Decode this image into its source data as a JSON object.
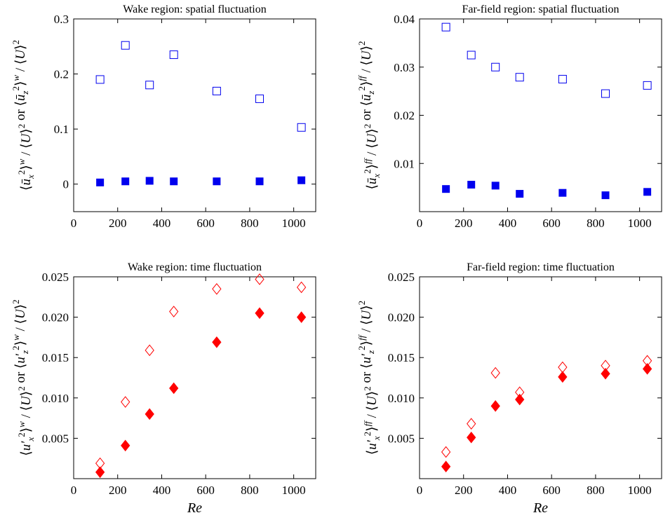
{
  "chart_data": [
    {
      "type": "scatter",
      "title": "Wake region: spatial fluctuation",
      "xlabel": "",
      "ylabel": "⟨ū_x²⟩^w / ⟨U⟩²  or  ⟨ū_z²⟩^w / ⟨U⟩²",
      "xlim": [
        0,
        1100
      ],
      "ylim": [
        -0.05,
        0.3
      ],
      "xticks": [
        "0",
        "200",
        "400",
        "600",
        "800",
        "1000"
      ],
      "yticks": [
        "0",
        "0.1",
        "0.2",
        "0.3"
      ],
      "grid": false,
      "series": [
        {
          "marker": "square-open",
          "color": "#0000ee",
          "x": [
            120,
            235,
            345,
            455,
            650,
            845,
            1035
          ],
          "y": [
            0.19,
            0.252,
            0.18,
            0.235,
            0.169,
            0.155,
            0.103
          ]
        },
        {
          "marker": "square-filled",
          "color": "#0000ee",
          "x": [
            120,
            235,
            345,
            455,
            650,
            845,
            1035
          ],
          "y": [
            0.003,
            0.005,
            0.006,
            0.005,
            0.005,
            0.005,
            0.007
          ]
        }
      ]
    },
    {
      "type": "scatter",
      "title": "Far-field region: spatial fluctuation",
      "xlabel": "",
      "ylabel": "⟨ū_x²⟩^ff / ⟨U⟩²  or  ⟨ū_z²⟩^ff / ⟨U⟩²",
      "xlim": [
        0,
        1100
      ],
      "ylim": [
        0,
        0.04
      ],
      "xticks": [
        "0",
        "200",
        "400",
        "600",
        "800",
        "1000"
      ],
      "yticks": [
        "0.01",
        "0.02",
        "0.03",
        "0.04"
      ],
      "grid": false,
      "series": [
        {
          "marker": "square-open",
          "color": "#0000ee",
          "x": [
            120,
            235,
            345,
            455,
            650,
            845,
            1035
          ],
          "y": [
            0.0383,
            0.0325,
            0.03,
            0.0279,
            0.0275,
            0.0245,
            0.0262
          ]
        },
        {
          "marker": "square-filled",
          "color": "#0000ee",
          "x": [
            120,
            235,
            345,
            455,
            650,
            845,
            1035
          ],
          "y": [
            0.0047,
            0.0056,
            0.0054,
            0.0037,
            0.0039,
            0.0034,
            0.0041
          ]
        }
      ]
    },
    {
      "type": "scatter",
      "title": "Wake region: time fluctuation",
      "xlabel": "Re",
      "ylabel": "⟨u′_x²⟩^w / ⟨U⟩²  or  ⟨u′_z²⟩^w / ⟨U⟩²",
      "xlim": [
        0,
        1100
      ],
      "ylim": [
        0,
        0.025
      ],
      "xticks": [
        "0",
        "200",
        "400",
        "600",
        "800",
        "1000"
      ],
      "yticks": [
        "0.005",
        "0.010",
        "0.015",
        "0.020",
        "0.025"
      ],
      "grid": false,
      "series": [
        {
          "marker": "diamond-open",
          "color": "#ff0000",
          "x": [
            120,
            235,
            345,
            455,
            650,
            845,
            1035
          ],
          "y": [
            0.0019,
            0.0095,
            0.0159,
            0.0207,
            0.0235,
            0.0247,
            0.0237
          ]
        },
        {
          "marker": "diamond-filled",
          "color": "#ff0000",
          "x": [
            120,
            235,
            345,
            455,
            650,
            845,
            1035
          ],
          "y": [
            0.0008,
            0.0041,
            0.008,
            0.0112,
            0.0169,
            0.0205,
            0.02
          ]
        }
      ]
    },
    {
      "type": "scatter",
      "title": "Far-field region: time fluctuation",
      "xlabel": "Re",
      "ylabel": "⟨u′_x²⟩^ff / ⟨U⟩²  or  ⟨u′_z²⟩^ff / ⟨U⟩²",
      "xlim": [
        0,
        1100
      ],
      "ylim": [
        0,
        0.025
      ],
      "xticks": [
        "0",
        "200",
        "400",
        "600",
        "800",
        "1000"
      ],
      "yticks": [
        "0.005",
        "0.010",
        "0.015",
        "0.020",
        "0.025"
      ],
      "grid": false,
      "series": [
        {
          "marker": "diamond-open",
          "color": "#ff0000",
          "x": [
            120,
            235,
            345,
            455,
            650,
            845,
            1035
          ],
          "y": [
            0.0033,
            0.0068,
            0.0131,
            0.0107,
            0.0138,
            0.014,
            0.0146
          ]
        },
        {
          "marker": "diamond-filled",
          "color": "#ff0000",
          "x": [
            120,
            235,
            345,
            455,
            650,
            845,
            1035
          ],
          "y": [
            0.0015,
            0.0051,
            0.009,
            0.0098,
            0.0126,
            0.013,
            0.0136
          ]
        }
      ]
    }
  ]
}
